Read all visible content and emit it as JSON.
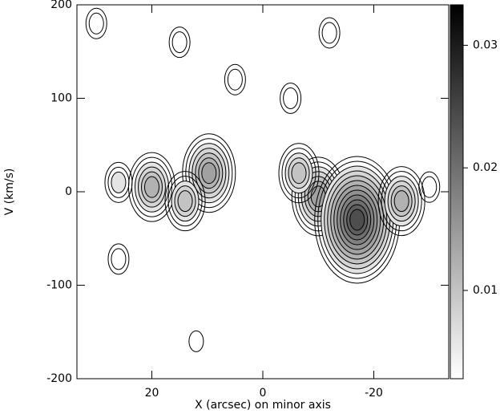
{
  "chart_data": {
    "type": "contour",
    "xlabel": "X (arcsec) on minor axis",
    "ylabel": "V (km/s)",
    "xlim": [
      33.5,
      -33.5
    ],
    "xticks": [
      20,
      0,
      -20
    ],
    "ylim": [
      -200,
      200
    ],
    "yticks": [
      -200,
      -100,
      0,
      100,
      200
    ],
    "clim": [
      0.0028,
      0.0333
    ],
    "cticks": [
      0.01,
      0.02,
      0.03
    ],
    "x": [
      20,
      9.7,
      14,
      26,
      -10,
      -6.5,
      -17,
      -25,
      26,
      30,
      15,
      5,
      -12,
      -5,
      -30,
      12
    ],
    "y": [
      5,
      20,
      -10,
      10,
      -5,
      20,
      -30,
      -10,
      -72,
      180,
      160,
      120,
      170,
      100,
      5,
      -160
    ],
    "values": [
      0.012,
      0.015,
      0.01,
      0.006,
      0.015,
      0.01,
      0.025,
      0.012,
      0.004,
      0.004,
      0.004,
      0.004,
      0.004,
      0.004,
      0.004,
      0.002
    ]
  }
}
